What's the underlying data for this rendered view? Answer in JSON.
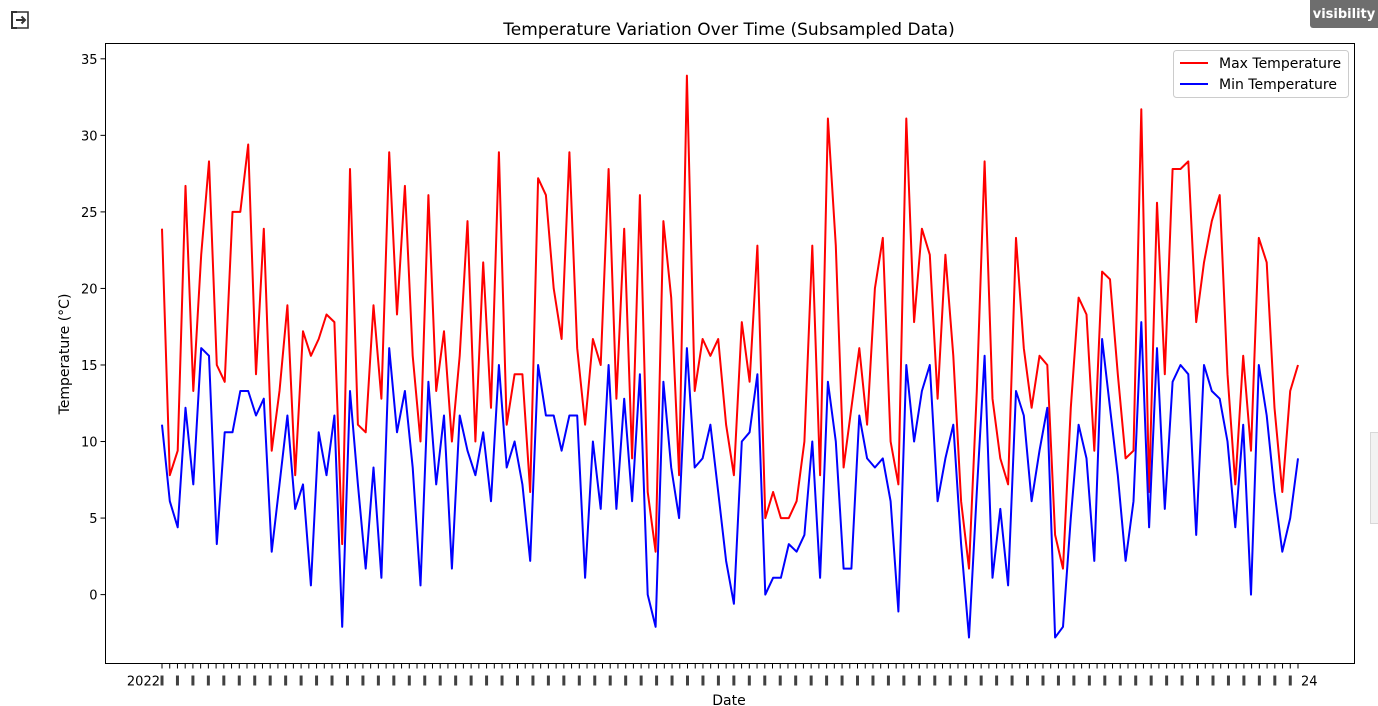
{
  "ui": {
    "visibility_label": "visibility",
    "exit_icon": "exit-to-app-icon"
  },
  "chart_data": {
    "type": "line",
    "title": "Temperature Variation Over Time (Subsampled Data)",
    "xlabel": "Date",
    "ylabel": "Temperature (°C)",
    "ylim": [
      -4.5,
      36
    ],
    "yticks": [
      0,
      5,
      10,
      15,
      20,
      25,
      30,
      35
    ],
    "x_tick_count": 148,
    "x_first_label": "2022",
    "x_last_label": "24",
    "legend_position": "top-right",
    "grid": false,
    "series": [
      {
        "name": "Max Temperature",
        "color": "#ff0000",
        "values": [
          23.9,
          7.8,
          9.4,
          26.7,
          13.3,
          22.2,
          28.3,
          15.0,
          13.9,
          25.0,
          25.0,
          29.4,
          14.4,
          23.9,
          9.4,
          13.3,
          18.9,
          7.8,
          17.2,
          15.6,
          16.7,
          18.3,
          17.8,
          3.3,
          27.8,
          11.1,
          10.6,
          18.9,
          12.8,
          28.9,
          18.3,
          26.7,
          15.6,
          10.0,
          26.1,
          13.3,
          17.2,
          10.0,
          15.6,
          24.4,
          10.0,
          21.7,
          12.2,
          28.9,
          11.1,
          14.4,
          14.4,
          6.7,
          27.2,
          26.1,
          20.0,
          16.7,
          28.9,
          16.1,
          11.1,
          16.7,
          15.0,
          27.8,
          12.8,
          23.9,
          8.9,
          26.1,
          6.7,
          2.8,
          24.4,
          19.4,
          7.8,
          33.9,
          13.3,
          16.7,
          15.6,
          16.7,
          11.1,
          7.8,
          17.8,
          13.9,
          22.8,
          5.0,
          6.7,
          5.0,
          5.0,
          6.1,
          10.0,
          22.8,
          7.8,
          31.1,
          22.8,
          8.3,
          12.2,
          16.1,
          11.1,
          20.0,
          23.3,
          10.0,
          7.2,
          31.1,
          17.8,
          23.9,
          22.2,
          12.8,
          22.2,
          15.6,
          6.1,
          1.7,
          13.3,
          28.3,
          12.8,
          8.9,
          7.2,
          23.3,
          16.1,
          12.2,
          15.6,
          15.0,
          3.9,
          1.7,
          12.2,
          19.4,
          18.3,
          9.4,
          21.1,
          20.6,
          14.4,
          8.9,
          9.4,
          31.7,
          6.7,
          25.6,
          14.4,
          27.8,
          27.8,
          28.3,
          17.8,
          21.7,
          24.4,
          26.1,
          14.4,
          7.2,
          15.6,
          9.4,
          23.3,
          21.7,
          12.2,
          6.7,
          13.3,
          15.0
        ]
      },
      {
        "name": "Min Temperature",
        "color": "#0000ff",
        "values": [
          11.1,
          6.1,
          4.4,
          12.2,
          7.2,
          16.1,
          15.6,
          3.3,
          10.6,
          10.6,
          13.3,
          13.3,
          11.7,
          12.8,
          2.8,
          7.2,
          11.7,
          5.6,
          7.2,
          0.6,
          10.6,
          7.8,
          11.7,
          -2.1,
          13.3,
          7.2,
          1.7,
          8.3,
          1.1,
          16.1,
          10.6,
          13.3,
          8.3,
          0.6,
          13.9,
          7.2,
          11.7,
          1.7,
          11.7,
          9.4,
          7.8,
          10.6,
          6.1,
          15.0,
          8.3,
          10.0,
          7.2,
          2.2,
          15.0,
          11.7,
          11.7,
          9.4,
          11.7,
          11.7,
          1.1,
          10.0,
          5.6,
          15.0,
          5.6,
          12.8,
          6.1,
          14.4,
          0.0,
          -2.1,
          13.9,
          8.3,
          5.0,
          16.1,
          8.3,
          8.9,
          11.1,
          6.7,
          2.2,
          -0.6,
          10.0,
          10.6,
          14.4,
          0.0,
          1.1,
          1.1,
          3.3,
          2.8,
          3.9,
          10.0,
          1.1,
          13.9,
          10.0,
          1.7,
          1.7,
          11.7,
          8.9,
          8.3,
          8.9,
          6.1,
          -1.1,
          15.0,
          10.0,
          13.3,
          15.0,
          6.1,
          8.9,
          11.1,
          3.3,
          -2.8,
          6.7,
          15.6,
          1.1,
          5.6,
          0.6,
          13.3,
          11.7,
          6.1,
          9.4,
          12.2,
          -2.8,
          -2.1,
          5.0,
          11.1,
          8.9,
          2.2,
          16.7,
          12.2,
          7.8,
          2.2,
          6.1,
          17.8,
          4.4,
          16.1,
          5.6,
          13.9,
          15.0,
          14.4,
          3.9,
          15.0,
          13.3,
          12.8,
          10.0,
          4.4,
          11.1,
          0.0,
          15.0,
          11.7,
          6.7,
          2.8,
          5.0,
          8.9
        ]
      }
    ]
  }
}
